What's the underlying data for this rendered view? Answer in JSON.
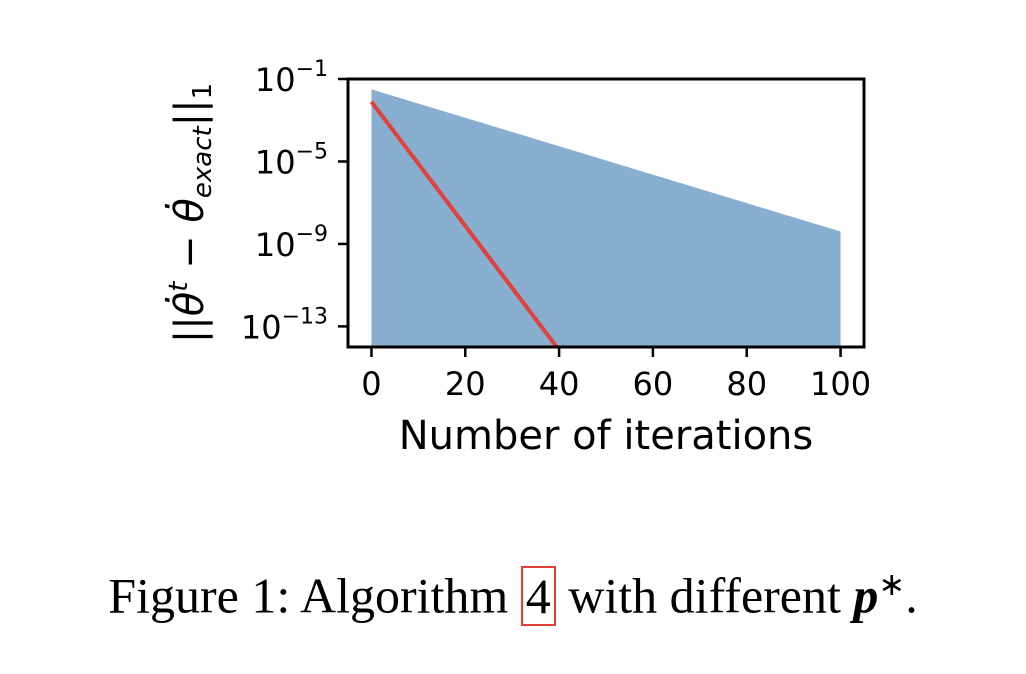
{
  "chart_data": {
    "type": "area",
    "xlabel": "Number of iterations",
    "ylabel": "||θ̇ᵗ − θ̇exact||₁",
    "ylabel_parts": {
      "open": "||",
      "theta1": "θ̇",
      "sup": "t",
      "minus": " − ",
      "theta2": "θ̇",
      "sub": "exact",
      "close": "||",
      "norm": "1"
    },
    "xlim": [
      -5,
      105
    ],
    "ylim_exp": [
      -14,
      -1
    ],
    "yscale": "log",
    "x_ticks": [
      0,
      20,
      40,
      60,
      80,
      100
    ],
    "x_tick_labels": [
      "0",
      "20",
      "40",
      "60",
      "80",
      "100"
    ],
    "y_ticks_exp": [
      -1,
      -5,
      -9,
      -13
    ],
    "y_tick_labels": [
      {
        "base": "10",
        "exp": "−1"
      },
      {
        "base": "10",
        "exp": "−5"
      },
      {
        "base": "10",
        "exp": "−9"
      },
      {
        "base": "10",
        "exp": "−13"
      }
    ],
    "series": [
      {
        "kind": "band",
        "color": "#88aed0",
        "upper": {
          "x": [
            0,
            100
          ],
          "y_exp": [
            -1.5,
            -8.4
          ]
        },
        "lower": {
          "x": [
            0,
            100
          ],
          "y_exp": [
            -14,
            -14
          ]
        }
      },
      {
        "kind": "line",
        "color": "#e0413a",
        "x": [
          0,
          39.5
        ],
        "y_exp": [
          -2.1,
          -14
        ]
      }
    ],
    "grid": false
  },
  "caption": {
    "prefix": "Figure 1: Algorithm ",
    "ref": "4",
    "middle": " with different ",
    "symbol": "p",
    "sup": "∗",
    "suffix": "."
  }
}
